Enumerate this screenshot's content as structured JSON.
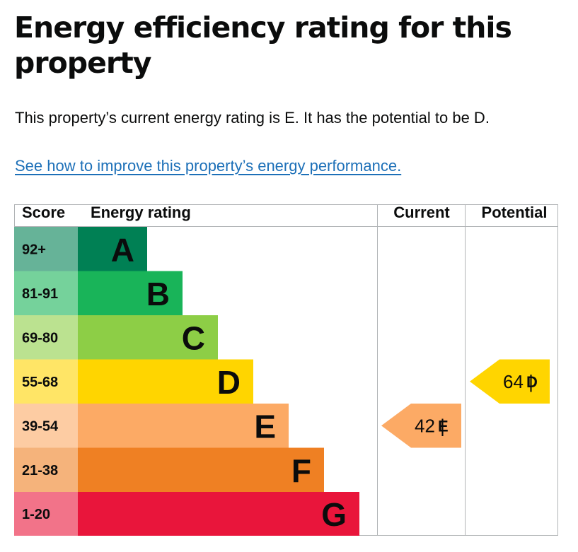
{
  "heading": "Energy efficiency rating for this property",
  "summary": "This property’s current energy rating is E. It has the potential to be D.",
  "improve_link": "See how to improve this property’s energy performance.",
  "chart_data": {
    "type": "table",
    "columns": {
      "score": "Score",
      "rating": "Energy rating",
      "current": "Current",
      "potential": "Potential"
    },
    "bands": [
      {
        "letter": "A",
        "score": "92+",
        "color": "#008054",
        "score_color": "#66b398"
      },
      {
        "letter": "B",
        "score": "81-91",
        "color": "#19b459",
        "score_color": "#75d29b"
      },
      {
        "letter": "C",
        "score": "69-80",
        "color": "#8dce46",
        "score_color": "#bbe290"
      },
      {
        "letter": "D",
        "score": "55-68",
        "color": "#ffd500",
        "score_color": "#ffe566"
      },
      {
        "letter": "E",
        "score": "39-54",
        "color": "#fcaa65",
        "score_color": "#fdcca3"
      },
      {
        "letter": "F",
        "score": "21-38",
        "color": "#ef8023",
        "score_color": "#f5b37b"
      },
      {
        "letter": "G",
        "score": "1-20",
        "color": "#e9153b",
        "score_color": "#f27389"
      }
    ],
    "current": {
      "value": 42,
      "band": "E",
      "sep": "|"
    },
    "potential": {
      "value": 64,
      "band": "D",
      "sep": "|"
    }
  }
}
